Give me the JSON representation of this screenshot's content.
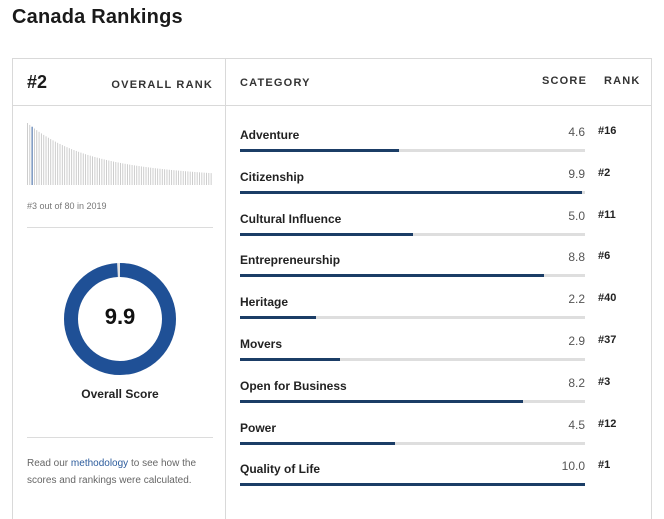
{
  "page": {
    "title": "Canada Rankings"
  },
  "left": {
    "rank": "#2",
    "overall_rank_label": "OVERALL RANK",
    "rank_note": "#3 out of 80 in 2019",
    "overall_score": "9.9",
    "overall_score_fraction": 0.99,
    "overall_score_label": "Overall Score",
    "methodology": {
      "prefix": "Read our ",
      "link": "methodology",
      "suffix": " to see how the scores and rankings were calculated."
    }
  },
  "table": {
    "headers": {
      "category": "CATEGORY",
      "score": "SCORE",
      "rank": "RANK"
    },
    "rows": [
      {
        "name": "Adventure",
        "score": "4.6",
        "rank": "#16",
        "value": 4.6
      },
      {
        "name": "Citizenship",
        "score": "9.9",
        "rank": "#2",
        "value": 9.9
      },
      {
        "name": "Cultural Influence",
        "score": "5.0",
        "rank": "#11",
        "value": 5.0
      },
      {
        "name": "Entrepreneurship",
        "score": "8.8",
        "rank": "#6",
        "value": 8.8
      },
      {
        "name": "Heritage",
        "score": "2.2",
        "rank": "#40",
        "value": 2.2
      },
      {
        "name": "Movers",
        "score": "2.9",
        "rank": "#37",
        "value": 2.9
      },
      {
        "name": "Open for Business",
        "score": "8.2",
        "rank": "#3",
        "value": 8.2
      },
      {
        "name": "Power",
        "score": "4.5",
        "rank": "#12",
        "value": 4.5
      },
      {
        "name": "Quality of Life",
        "score": "10.0",
        "rank": "#1",
        "value": 10.0
      }
    ],
    "max_value": 10
  },
  "colors": {
    "bar_fill": "#1b3d66",
    "bar_track": "#dedede",
    "donut": "#1f5096",
    "donut_track": "#e2e2e2",
    "spark_bar": "#c8c8c8",
    "spark_highlight": "#1f5096"
  }
}
